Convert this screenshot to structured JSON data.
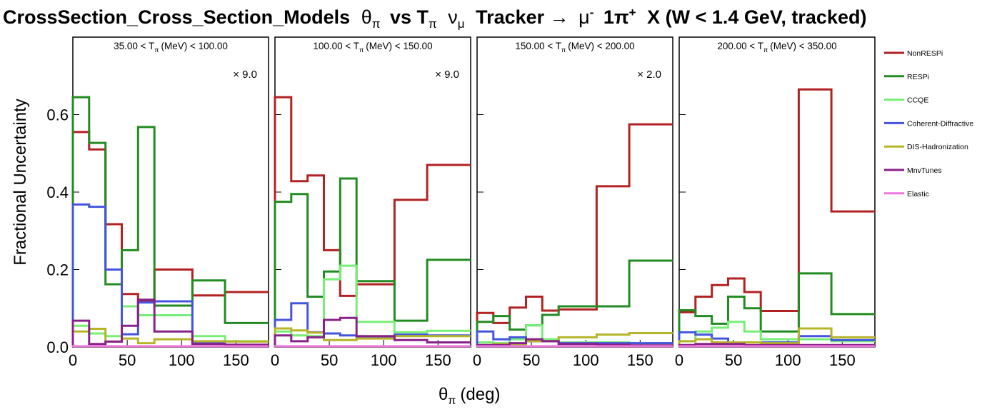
{
  "colors": {
    "NonRESPi": "#b22222",
    "RESPi": "#228b22",
    "CCQE": "#77ee77",
    "Coherent-Diffractive": "#4455dd",
    "DIS-Hadronization": "#b5b527",
    "MnvTunes": "#882288",
    "Elastic": "#ee77dd"
  },
  "chart_data": {
    "type": "step",
    "title": {
      "prefix": "CrossSection_Cross_Section_Models",
      "theta": "θ",
      "pi_sub": "π",
      "vs": "vs T",
      "nu": "ν",
      "mu_sub": "μ",
      "tracker": "Tracker →",
      "mu": "μ",
      "mu_sup": "-",
      "one_pi": "1π",
      "pi_sup": "+",
      "rest": "X  (W < 1.4 GeV, tracked)"
    },
    "ylabel": "Fractional Uncertainty",
    "xlabel": {
      "theta": "θ",
      "sub": "π",
      "unit": "(deg)"
    },
    "ylim": [
      0,
      0.8
    ],
    "xlim": [
      0,
      180
    ],
    "yticks": [
      "0.0",
      "0.2",
      "0.4",
      "0.6"
    ],
    "ytick_values": [
      0,
      0.2,
      0.4,
      0.6
    ],
    "xticks": [
      "0",
      "50",
      "100",
      "150"
    ],
    "xtick_values": [
      0,
      50,
      100,
      150
    ],
    "bin_edges": [
      0,
      15,
      30,
      45,
      60,
      75,
      110,
      140,
      180
    ],
    "legend": [
      "NonRESPi",
      "RESPi",
      "CCQE",
      "Coherent-Diffractive",
      "DIS-Hadronization",
      "MnvTunes",
      "Elastic"
    ],
    "panels": [
      {
        "label": {
          "lo": "35.00 < T",
          "sub": "π",
          "hi": "(MeV) < 100.00"
        },
        "scale": "× 9.0",
        "series": [
          {
            "name": "NonRESPi",
            "values": [
              0.555,
              0.51,
              0.317,
              0.137,
              0.118,
              0.2,
              0.133,
              0.142
            ]
          },
          {
            "name": "RESPi",
            "values": [
              0.645,
              0.527,
              0.162,
              0.25,
              0.568,
              0.107,
              0.172,
              0.062
            ]
          },
          {
            "name": "CCQE",
            "values": [
              0.055,
              0.035,
              0.028,
              0.105,
              0.082,
              0.082,
              0.028,
              0.015
            ]
          },
          {
            "name": "Coherent-Diffractive",
            "values": [
              0.368,
              0.362,
              0.2,
              0.033,
              0.115,
              0.118,
              0.01,
              0.005
            ]
          },
          {
            "name": "DIS-Hadronization",
            "values": [
              0.04,
              0.047,
              0.014,
              0.022,
              0.01,
              0.02,
              0.015,
              0.014
            ]
          },
          {
            "name": "MnvTunes",
            "values": [
              0.068,
              0.008,
              0.014,
              0.055,
              0.122,
              0.04,
              0.008,
              0.006
            ]
          },
          {
            "name": "Elastic",
            "values": [
              0.002,
              0.002,
              0.002,
              0.002,
              0.002,
              0.002,
              0.002,
              0.002
            ]
          }
        ]
      },
      {
        "label": {
          "lo": "100.00 < T",
          "sub": "π",
          "hi": "(MeV) < 150.00"
        },
        "scale": "× 9.0",
        "series": [
          {
            "name": "NonRESPi",
            "values": [
              0.645,
              0.428,
              0.443,
              0.25,
              0.132,
              0.162,
              0.38,
              0.47
            ]
          },
          {
            "name": "RESPi",
            "values": [
              0.375,
              0.395,
              0.13,
              0.195,
              0.435,
              0.17,
              0.068,
              0.225
            ]
          },
          {
            "name": "CCQE",
            "values": [
              0.04,
              0.03,
              0.028,
              0.175,
              0.21,
              0.065,
              0.038,
              0.042
            ]
          },
          {
            "name": "Coherent-Diffractive",
            "values": [
              0.07,
              0.113,
              0.038,
              0.035,
              0.03,
              0.025,
              0.032,
              0.03
            ]
          },
          {
            "name": "DIS-Hadronization",
            "values": [
              0.048,
              0.043,
              0.037,
              0.018,
              0.018,
              0.022,
              0.028,
              0.028
            ]
          },
          {
            "name": "MnvTunes",
            "values": [
              0.03,
              0.015,
              0.025,
              0.07,
              0.075,
              0.028,
              0.018,
              0.012
            ]
          },
          {
            "name": "Elastic",
            "values": [
              0.002,
              0.002,
              0.002,
              0.002,
              0.002,
              0.002,
              0.002,
              0.002
            ]
          }
        ]
      },
      {
        "label": {
          "lo": "150.00 < T",
          "sub": "π",
          "hi": "(MeV) < 200.00"
        },
        "scale": "× 2.0",
        "series": [
          {
            "name": "NonRESPi",
            "values": [
              0.088,
              0.062,
              0.102,
              0.13,
              0.094,
              0.097,
              0.415,
              0.575
            ]
          },
          {
            "name": "RESPi",
            "values": [
              0.065,
              0.08,
              0.045,
              0.056,
              0.083,
              0.105,
              0.105,
              0.223
            ]
          },
          {
            "name": "CCQE",
            "values": [
              0.012,
              0.01,
              0.02,
              0.056,
              0.02,
              0.012,
              0.012,
              0.01
            ]
          },
          {
            "name": "Coherent-Diffractive",
            "values": [
              0.04,
              0.02,
              0.025,
              0.015,
              0.015,
              0.01,
              0.01,
              0.01
            ]
          },
          {
            "name": "DIS-Hadronization",
            "values": [
              0.005,
              0.008,
              0.005,
              0.015,
              0.015,
              0.025,
              0.032,
              0.036
            ]
          },
          {
            "name": "MnvTunes",
            "values": [
              0.005,
              0.005,
              0.01,
              0.02,
              0.015,
              0.008,
              0.006,
              0.004
            ]
          },
          {
            "name": "Elastic",
            "values": [
              0.002,
              0.002,
              0.002,
              0.002,
              0.002,
              0.002,
              0.002,
              0.002
            ]
          }
        ]
      },
      {
        "label": {
          "lo": "200.00 < T",
          "sub": "π",
          "hi": "(MeV) < 350.00"
        },
        "scale": "",
        "series": [
          {
            "name": "NonRESPi",
            "values": [
              0.09,
              0.13,
              0.16,
              0.177,
              0.142,
              0.093,
              0.665,
              0.35
            ]
          },
          {
            "name": "RESPi",
            "values": [
              0.095,
              0.08,
              0.06,
              0.13,
              0.1,
              0.04,
              0.19,
              0.085
            ]
          },
          {
            "name": "CCQE",
            "values": [
              0.015,
              0.04,
              0.05,
              0.065,
              0.04,
              0.02,
              0.02,
              0.015
            ]
          },
          {
            "name": "Coherent-Diffractive",
            "values": [
              0.038,
              0.032,
              0.022,
              0.012,
              0.012,
              0.012,
              0.028,
              0.018
            ]
          },
          {
            "name": "DIS-Hadronization",
            "values": [
              0.015,
              0.02,
              0.012,
              0.012,
              0.012,
              0.01,
              0.048,
              0.025
            ]
          },
          {
            "name": "MnvTunes",
            "values": [
              0.005,
              0.008,
              0.008,
              0.008,
              0.005,
              0.005,
              0.005,
              0.005
            ]
          },
          {
            "name": "Elastic",
            "values": [
              0.002,
              0.002,
              0.002,
              0.002,
              0.002,
              0.002,
              0.002,
              0.002
            ]
          }
        ]
      }
    ]
  }
}
